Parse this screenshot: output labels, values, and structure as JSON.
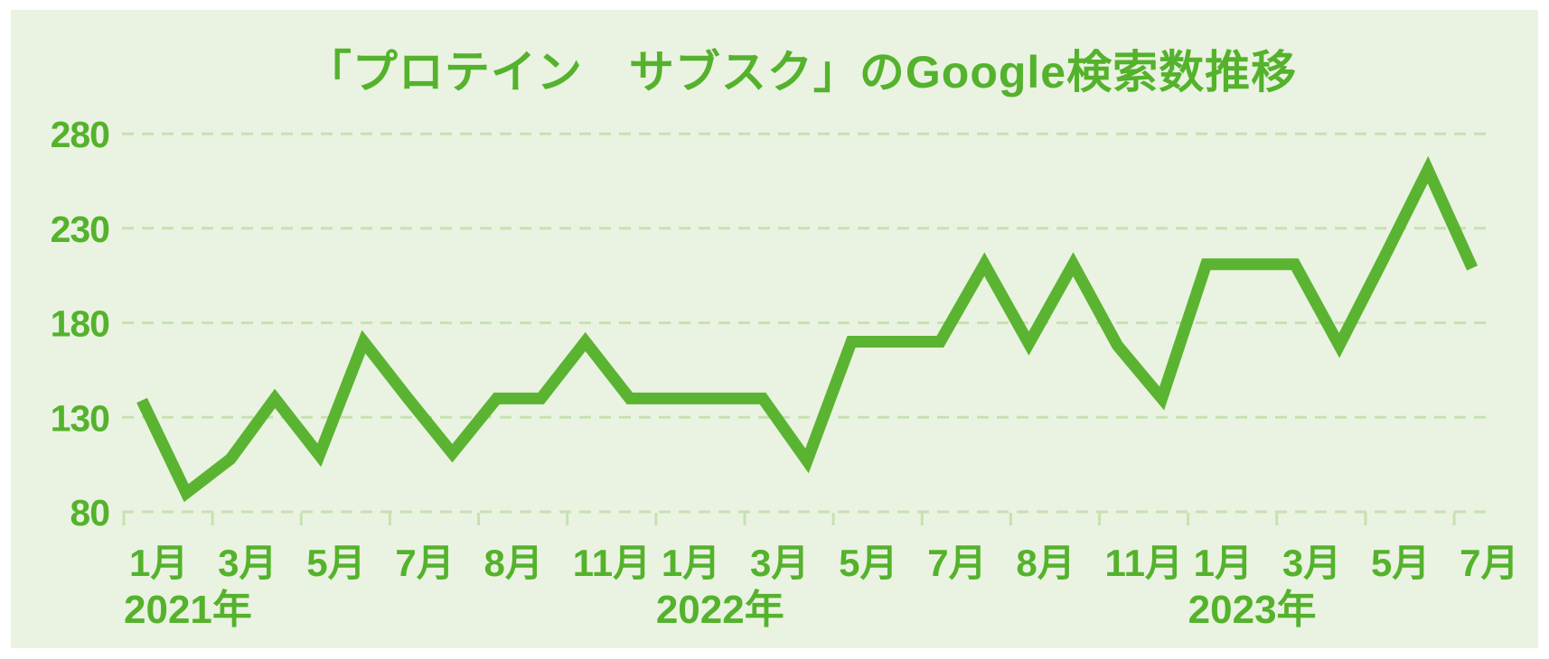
{
  "title": "「プロテイン　サブスク」のGoogle検索数推移",
  "colors": {
    "page_background": "#ffffff",
    "panel_background": "#eaf3e1",
    "accent_text": "#54b22c",
    "line": "#5ab431",
    "grid": "#c7e1b2"
  },
  "chart_data": {
    "type": "line",
    "title": "「プロテイン　サブスク」のGoogle検索数推移",
    "grid": "horizontal-dashed",
    "legend": "none",
    "ylim": [
      80,
      280
    ],
    "y_ticks": [
      280,
      230,
      180,
      130,
      80
    ],
    "x_tick_labels": [
      "1月",
      "3月",
      "5月",
      "7月",
      "8月",
      "11月",
      "1月",
      "3月",
      "5月",
      "7月",
      "8月",
      "11月",
      "1月",
      "3月",
      "5月",
      "7月"
    ],
    "year_labels": [
      {
        "text": "2021年",
        "tick_index": 0
      },
      {
        "text": "2022年",
        "tick_index": 6
      },
      {
        "text": "2023年",
        "tick_index": 12
      }
    ],
    "x": [
      "2021-01",
      "2021-02",
      "2021-03",
      "2021-04",
      "2021-05",
      "2021-06",
      "2021-07",
      "2021-08",
      "2021-09",
      "2021-10",
      "2021-11",
      "2021-12",
      "2022-01",
      "2022-02",
      "2022-03",
      "2022-04",
      "2022-05",
      "2022-06",
      "2022-07",
      "2022-08",
      "2022-09",
      "2022-10",
      "2022-11",
      "2022-12",
      "2023-01",
      "2023-02",
      "2023-03",
      "2023-04",
      "2023-05",
      "2023-06",
      "2023-07"
    ],
    "values": [
      139,
      90,
      108,
      140,
      110,
      170,
      140,
      111,
      140,
      140,
      170,
      140,
      140,
      140,
      140,
      107,
      170,
      170,
      170,
      211,
      169,
      211,
      168,
      140,
      211,
      211,
      211,
      168,
      214,
      261,
      209
    ]
  }
}
